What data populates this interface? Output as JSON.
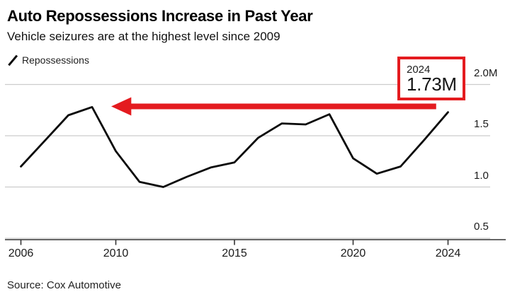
{
  "header": {
    "title": "Auto Repossessions Increase in Past Year",
    "subtitle": "Vehicle seizures are at the highest level since 2009"
  },
  "legend": {
    "series_label": "Repossessions",
    "mark_icon": "slash-line-icon"
  },
  "annotation": {
    "year": "2024",
    "value": "1.73M"
  },
  "source": "Source: Cox Automotive",
  "colors": {
    "accent_red": "#e41b1f",
    "line": "#0a0a0a",
    "grid": "#cccccc",
    "axis": "#333333",
    "text": "#1a1a1a"
  },
  "chart_data": {
    "type": "line",
    "title": "Auto Repossessions Increase in Past Year",
    "xlabel": "",
    "ylabel": "",
    "grid": true,
    "legend_position": "top-left",
    "ylim": [
      0.5,
      2.0
    ],
    "xlim": [
      2006,
      2024
    ],
    "x_ticks": [
      {
        "value": 2006,
        "label": "2006"
      },
      {
        "value": 2010,
        "label": "2010"
      },
      {
        "value": 2015,
        "label": "2015"
      },
      {
        "value": 2020,
        "label": "2020"
      },
      {
        "value": 2024,
        "label": "2024"
      }
    ],
    "y_ticks": [
      {
        "value": 2.0,
        "label": "2.0M"
      },
      {
        "value": 1.5,
        "label": "1.5"
      },
      {
        "value": 1.0,
        "label": "1.0"
      },
      {
        "value": 0.5,
        "label": "0.5"
      }
    ],
    "series": [
      {
        "name": "Repossessions",
        "unit": "millions of vehicles",
        "x": [
          2006,
          2007,
          2008,
          2009,
          2010,
          2011,
          2012,
          2013,
          2014,
          2015,
          2016,
          2017,
          2018,
          2019,
          2020,
          2021,
          2022,
          2023,
          2024
        ],
        "values": [
          1.2,
          1.45,
          1.7,
          1.78,
          1.35,
          1.05,
          1.0,
          1.1,
          1.19,
          1.24,
          1.48,
          1.62,
          1.61,
          1.71,
          1.28,
          1.13,
          1.2,
          1.46,
          1.73
        ]
      }
    ],
    "annotations": [
      {
        "type": "callout-box",
        "x": 2024,
        "label_line1": "2024",
        "label_line2": "1.73M"
      },
      {
        "type": "arrow-left",
        "from_x": 2023.5,
        "to_x": 2009.8,
        "at_value": 1.79,
        "meaning": "2024 level points back to 2009 peak"
      }
    ]
  }
}
